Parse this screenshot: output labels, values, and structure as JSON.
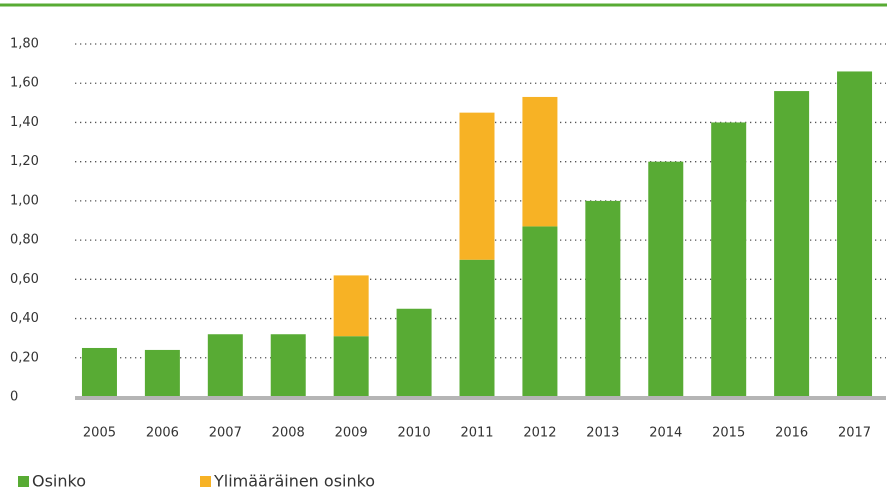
{
  "chart_data": {
    "type": "stacked_bar",
    "categories": [
      "2005",
      "2006",
      "2007",
      "2008",
      "2009",
      "2010",
      "2011",
      "2012",
      "2013",
      "2014",
      "2015",
      "2016",
      "2017"
    ],
    "series": [
      {
        "name": "Osinko",
        "color": "#58ab34",
        "values": [
          0.25,
          0.24,
          0.32,
          0.32,
          0.31,
          0.45,
          0.7,
          0.87,
          1.0,
          1.2,
          1.4,
          1.56,
          1.66
        ]
      },
      {
        "name": "Ylimääräinen osinko",
        "color": "#f7b225",
        "values": [
          null,
          null,
          null,
          null,
          0.31,
          null,
          0.75,
          0.66,
          null,
          null,
          null,
          null,
          null
        ]
      }
    ],
    "ylim": [
      0,
      1.8
    ],
    "yticks": [
      0,
      {
        "value": 0.2,
        "label": "0,20"
      },
      {
        "value": 0.4,
        "label": "0,40"
      },
      {
        "value": 0.6,
        "label": "0,60"
      },
      {
        "value": 0.8,
        "label": "0,80"
      },
      {
        "value": 1.0,
        "label": "1,00"
      },
      {
        "value": 1.2,
        "label": "1,20"
      },
      {
        "value": 1.4,
        "label": "1,40"
      },
      {
        "value": 1.6,
        "label": "1,60"
      },
      {
        "value": 1.8,
        "label": "1,80"
      }
    ],
    "grid": true
  }
}
